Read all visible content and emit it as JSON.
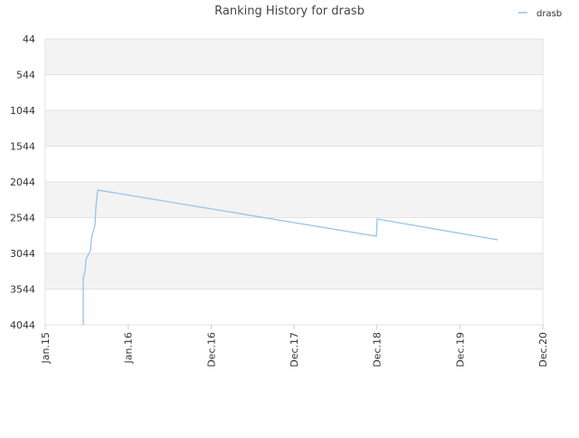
{
  "chart_data": {
    "type": "line",
    "title": "Ranking History for drasb",
    "x_scale": "time",
    "xlim": [
      0,
      6
    ],
    "xticks": [
      {
        "value": 0,
        "label": "Jan.15"
      },
      {
        "value": 1,
        "label": "Jan.16"
      },
      {
        "value": 2,
        "label": "Dec.16"
      },
      {
        "value": 3,
        "label": "Dec.17"
      },
      {
        "value": 4,
        "label": "Dec.18"
      },
      {
        "value": 5,
        "label": "Dec.19"
      },
      {
        "value": 6,
        "label": "Dec.20"
      }
    ],
    "ylim": [
      4044,
      44
    ],
    "y_inverted": true,
    "yticks": [
      44,
      544,
      1044,
      1544,
      2044,
      2544,
      3044,
      3544,
      4044
    ],
    "grid": true,
    "legend": "top-right",
    "x": [
      0.458,
      0.458,
      0.48,
      0.491,
      0.502,
      0.545,
      0.556,
      0.567,
      0.6,
      0.611,
      0.622,
      0.633,
      3.993,
      4.003,
      5.454
    ],
    "series": [
      {
        "name": "drasb",
        "color": "#92c4ee",
        "values": [
          4044,
          3386,
          3297,
          3133,
          3100,
          3006,
          2854,
          2778,
          2652,
          2398,
          2270,
          2158,
          2804,
          2563,
          2854
        ]
      }
    ]
  }
}
